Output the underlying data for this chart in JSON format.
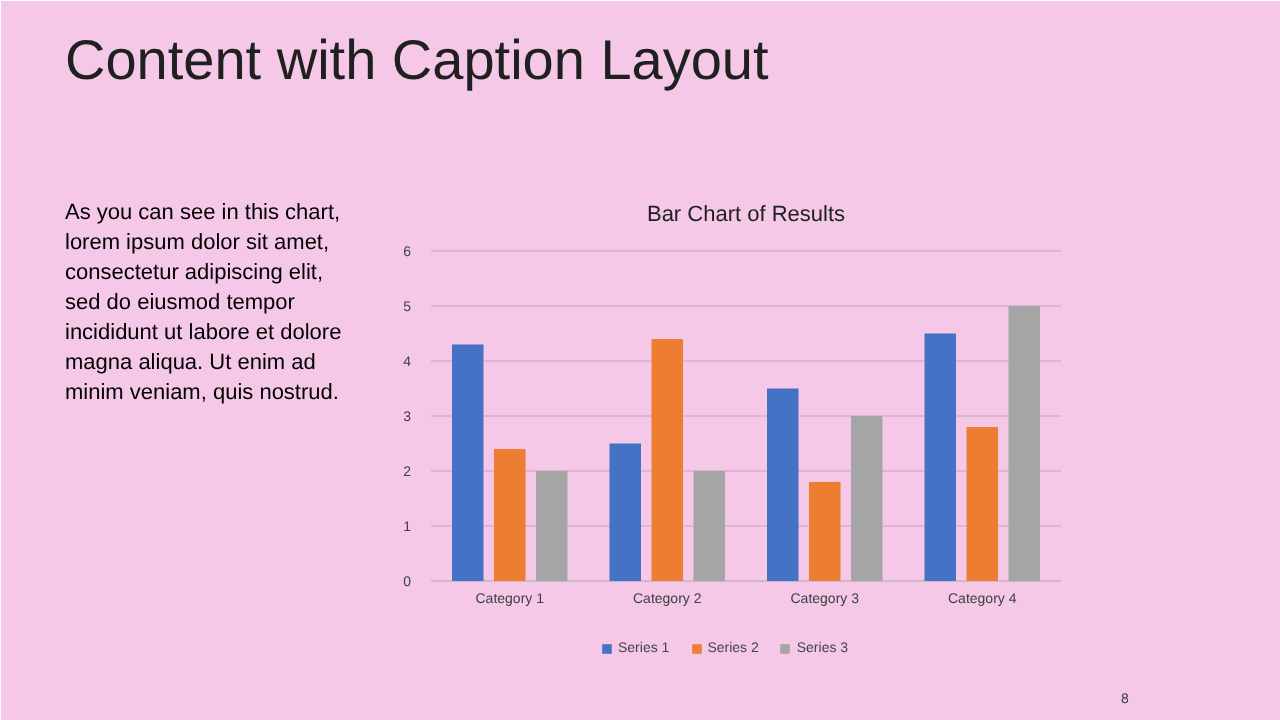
{
  "chart_data": {
    "type": "bar",
    "title": "Bar Chart of Results",
    "categories": [
      "Category 1",
      "Category 2",
      "Category 3",
      "Category 4"
    ],
    "series": [
      {
        "name": "Series 1",
        "color": "#4472c4",
        "values": [
          4.3,
          2.5,
          3.5,
          4.5
        ]
      },
      {
        "name": "Series 2",
        "color": "#ed7d31",
        "values": [
          2.4,
          4.4,
          1.8,
          2.8
        ]
      },
      {
        "name": "Series 3",
        "color": "#a5a5a5",
        "values": [
          2,
          2,
          3,
          5
        ]
      }
    ],
    "ylim": [
      0,
      6
    ],
    "yticks": [
      0,
      1,
      2,
      3,
      4,
      5,
      6
    ],
    "grid": "y",
    "legend": "bottom",
    "annotations": [
      "Content with Caption Layout",
      "As you can see in this chart,\nlorem ipsum dolor sit amet,\nconsectetur adipiscing elit,\nsed do eiusmod tempor\nincididunt ut labore et dolore\nmagna aliqua. Ut enim ad\nminim veniam, quis nostrud.",
      "8"
    ]
  }
}
